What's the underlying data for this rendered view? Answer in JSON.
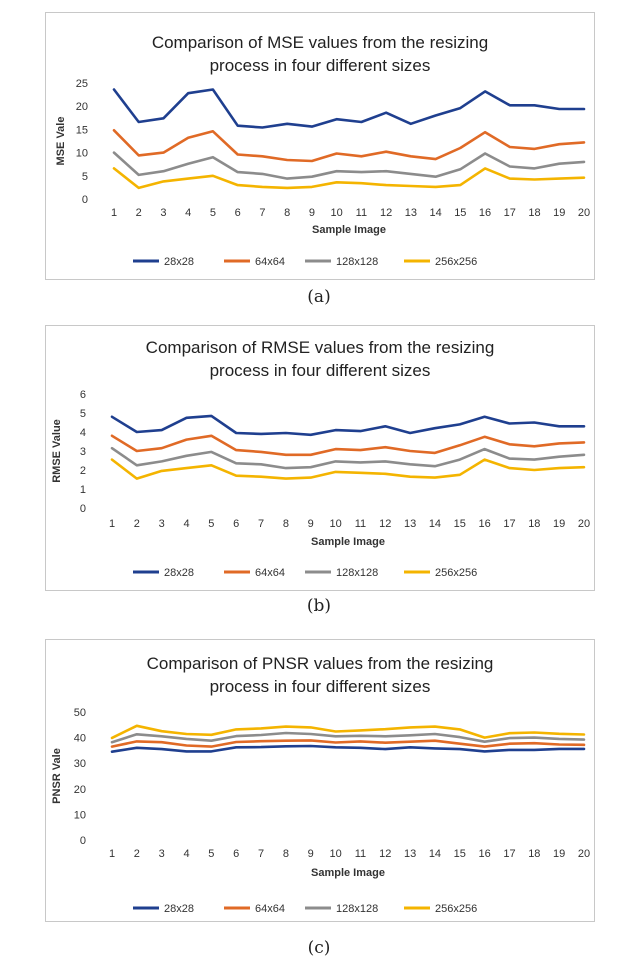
{
  "charts": [
    {
      "caption": "(a)",
      "chart_data": {
        "type": "line",
        "title": "Comparison of MSE values from the resizing process in four different sizes",
        "title_lines": [
          "Comparison of MSE values from the resizing",
          "process in four different sizes"
        ],
        "xlabel": "Sample Image",
        "ylabel": "MSE Vale",
        "ylim": [
          0,
          25
        ],
        "yticks": [
          0,
          5,
          10,
          15,
          20,
          25
        ],
        "grid": false,
        "legend": "bottom",
        "categories": [
          "1",
          "2",
          "3",
          "4",
          "5",
          "6",
          "7",
          "8",
          "9",
          "10",
          "11",
          "12",
          "13",
          "14",
          "15",
          "16",
          "17",
          "18",
          "19",
          "20"
        ],
        "series": [
          {
            "name": "28x28",
            "color": "#1f3f8f",
            "values": [
              23.6,
              16.6,
              17.4,
              22.8,
              23.6,
              15.8,
              15.4,
              16.2,
              15.6,
              17.2,
              16.6,
              18.6,
              16.2,
              18.0,
              19.6,
              23.2,
              20.2,
              20.2,
              19.4,
              19.4
            ]
          },
          {
            "name": "64x64",
            "color": "#e06a26",
            "values": [
              14.8,
              9.4,
              10.0,
              13.2,
              14.6,
              9.6,
              9.2,
              8.4,
              8.2,
              9.8,
              9.2,
              10.2,
              9.2,
              8.6,
              11.0,
              14.4,
              11.2,
              10.8,
              11.8,
              12.2
            ]
          },
          {
            "name": "128x128",
            "color": "#8c8c8c",
            "values": [
              10.0,
              5.2,
              6.0,
              7.6,
              9.0,
              5.8,
              5.4,
              4.4,
              4.8,
              6.0,
              5.8,
              6.0,
              5.4,
              4.8,
              6.4,
              9.8,
              7.0,
              6.6,
              7.6,
              8.0
            ]
          },
          {
            "name": "256x256",
            "color": "#f4b400",
            "values": [
              6.6,
              2.4,
              3.8,
              4.4,
              5.0,
              3.0,
              2.6,
              2.4,
              2.6,
              3.6,
              3.4,
              3.0,
              2.8,
              2.6,
              3.0,
              6.6,
              4.4,
              4.2,
              4.4,
              4.6
            ]
          }
        ]
      }
    },
    {
      "caption": "(b)",
      "chart_data": {
        "type": "line",
        "title": "Comparison of RMSE values from the resizing process in four different sizes",
        "title_lines": [
          "Comparison of RMSE values from the resizing",
          "process in four different sizes"
        ],
        "xlabel": "Sample Image",
        "ylabel": "RMSE Value",
        "ylim": [
          0,
          6
        ],
        "yticks": [
          0,
          1,
          2,
          3,
          4,
          5,
          6
        ],
        "grid": false,
        "legend": "bottom",
        "categories": [
          "1",
          "2",
          "3",
          "4",
          "5",
          "6",
          "7",
          "8",
          "9",
          "10",
          "11",
          "12",
          "13",
          "14",
          "15",
          "16",
          "17",
          "18",
          "19",
          "20"
        ],
        "series": [
          {
            "name": "28x28",
            "color": "#1f3f8f",
            "values": [
              4.8,
              4.0,
              4.1,
              4.75,
              4.85,
              3.95,
              3.9,
              3.95,
              3.85,
              4.1,
              4.05,
              4.3,
              3.95,
              4.2,
              4.4,
              4.8,
              4.45,
              4.5,
              4.3,
              4.3
            ]
          },
          {
            "name": "64x64",
            "color": "#e06a26",
            "values": [
              3.8,
              3.0,
              3.15,
              3.6,
              3.8,
              3.05,
              2.95,
              2.8,
              2.8,
              3.1,
              3.05,
              3.2,
              3.0,
              2.9,
              3.3,
              3.75,
              3.35,
              3.25,
              3.4,
              3.45
            ]
          },
          {
            "name": "128x128",
            "color": "#8c8c8c",
            "values": [
              3.15,
              2.25,
              2.45,
              2.75,
              2.95,
              2.35,
              2.3,
              2.1,
              2.15,
              2.45,
              2.4,
              2.45,
              2.3,
              2.2,
              2.55,
              3.1,
              2.6,
              2.55,
              2.7,
              2.8
            ]
          },
          {
            "name": "256x256",
            "color": "#f4b400",
            "values": [
              2.55,
              1.55,
              1.95,
              2.1,
              2.25,
              1.7,
              1.65,
              1.55,
              1.6,
              1.9,
              1.85,
              1.8,
              1.65,
              1.6,
              1.75,
              2.55,
              2.1,
              2.0,
              2.1,
              2.15
            ]
          }
        ]
      }
    },
    {
      "caption": "(c)",
      "chart_data": {
        "type": "line",
        "title": "Comparison of PNSR values from the resizing process in four different sizes",
        "title_lines": [
          "Comparison of PNSR values from the resizing",
          "process in four different sizes"
        ],
        "xlabel": "Sample Image",
        "ylabel": "PNSR Vale",
        "ylim": [
          0,
          50
        ],
        "yticks": [
          0,
          10,
          20,
          30,
          40,
          50
        ],
        "grid": false,
        "legend": "bottom",
        "categories": [
          "1",
          "2",
          "3",
          "4",
          "5",
          "6",
          "7",
          "8",
          "9",
          "10",
          "11",
          "12",
          "13",
          "14",
          "15",
          "16",
          "17",
          "18",
          "19",
          "20"
        ],
        "series": [
          {
            "name": "28x28",
            "color": "#1f3f8f",
            "values": [
              34.5,
              36.0,
              35.5,
              34.6,
              34.6,
              36.2,
              36.3,
              36.6,
              36.7,
              36.2,
              36.0,
              35.5,
              36.2,
              35.8,
              35.5,
              34.6,
              35.2,
              35.2,
              35.6,
              35.6
            ]
          },
          {
            "name": "64x64",
            "color": "#e06a26",
            "values": [
              36.5,
              38.5,
              38.2,
              36.9,
              36.5,
              38.3,
              38.6,
              38.8,
              38.9,
              38.1,
              38.5,
              38.0,
              38.4,
              38.8,
              37.6,
              36.5,
              37.6,
              37.8,
              37.3,
              37.2
            ]
          },
          {
            "name": "128x128",
            "color": "#8c8c8c",
            "values": [
              38.2,
              41.3,
              40.5,
              39.5,
              38.8,
              40.6,
              41.0,
              41.8,
              41.4,
              40.5,
              40.7,
              40.5,
              40.9,
              41.4,
              40.2,
              38.4,
              39.8,
              40.0,
              39.5,
              39.2
            ]
          },
          {
            "name": "256x256",
            "color": "#f4b400",
            "values": [
              39.9,
              44.6,
              42.5,
              41.4,
              41.1,
              43.2,
              43.6,
              44.3,
              44.0,
              42.4,
              42.8,
              43.3,
              44.0,
              44.3,
              43.2,
              40.0,
              41.7,
              42.0,
              41.5,
              41.2
            ]
          }
        ]
      }
    }
  ]
}
